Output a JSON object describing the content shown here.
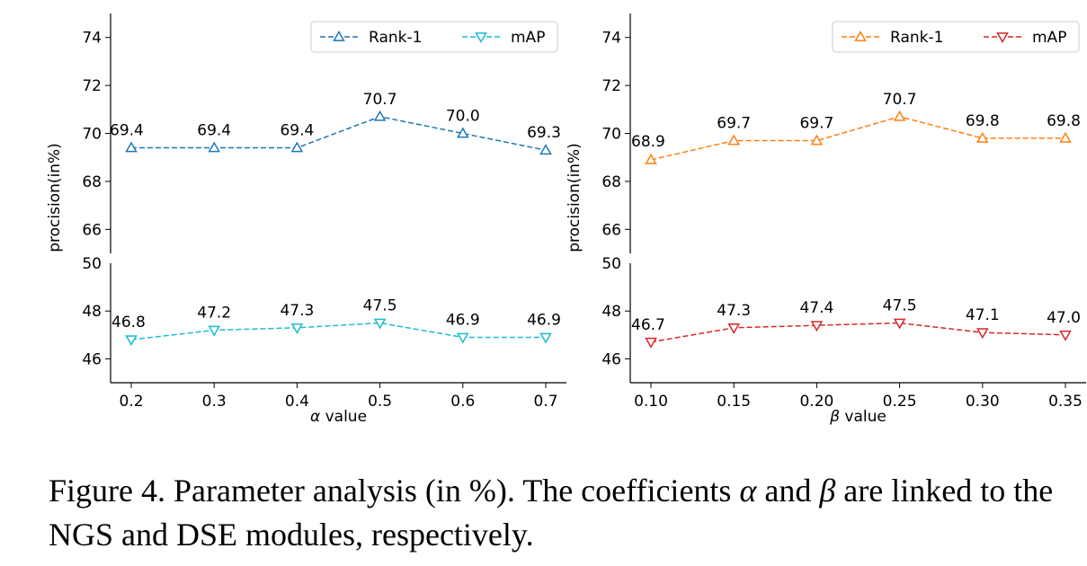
{
  "caption": {
    "prefix": "Figure 4. Parameter analysis (in %). The coefficients ",
    "alpha": "α",
    "middle": " and ",
    "beta": "β",
    "suffix": " are linked to the NGS and DSE modules, respectively."
  },
  "colors": {
    "rank1_left": "#1f77b4",
    "map_left": "#17becf",
    "rank1_right": "#ff7f0e",
    "map_right": "#d62728"
  },
  "chart_data": [
    {
      "type": "line",
      "panel": "left",
      "categories": [
        "0.2",
        "0.3",
        "0.4",
        "0.5",
        "0.6",
        "0.7"
      ],
      "x": [
        0.2,
        0.3,
        0.4,
        0.5,
        0.6,
        0.7
      ],
      "xlabel_symbol": "α",
      "xlabel_text": " value",
      "ylabel": "procision(in%)",
      "axis_break": true,
      "upper_ylim": [
        65,
        75
      ],
      "upper_yticks": [
        "66",
        "68",
        "70",
        "72",
        "74"
      ],
      "lower_ylim": [
        45,
        50
      ],
      "lower_yticks": [
        "46",
        "48",
        "50"
      ],
      "legend_placement": "top-right",
      "grid": false,
      "series": [
        {
          "name": "Rank-1",
          "marker": "triangle-up",
          "axis": "upper",
          "values": [
            69.4,
            69.4,
            69.4,
            70.7,
            70.0,
            69.3
          ],
          "labels": [
            "69.4",
            "69.4",
            "69.4",
            "70.7",
            "70.0",
            "69.3"
          ]
        },
        {
          "name": "mAP",
          "marker": "triangle-down",
          "axis": "lower",
          "values": [
            46.8,
            47.2,
            47.3,
            47.5,
            46.9,
            46.9
          ],
          "labels": [
            "46.8",
            "47.2",
            "47.3",
            "47.5",
            "46.9",
            "46.9"
          ]
        }
      ]
    },
    {
      "type": "line",
      "panel": "right",
      "categories": [
        "0.10",
        "0.15",
        "0.20",
        "0.25",
        "0.30",
        "0.35"
      ],
      "x": [
        0.1,
        0.15,
        0.2,
        0.25,
        0.3,
        0.35
      ],
      "xlabel_symbol": "β",
      "xlabel_text": " value",
      "ylabel": "procision(in%)",
      "axis_break": true,
      "upper_ylim": [
        65,
        75
      ],
      "upper_yticks": [
        "66",
        "68",
        "70",
        "72",
        "74"
      ],
      "lower_ylim": [
        45,
        50
      ],
      "lower_yticks": [
        "46",
        "48",
        "50"
      ],
      "legend_placement": "top-right",
      "grid": false,
      "series": [
        {
          "name": "Rank-1",
          "marker": "triangle-up",
          "axis": "upper",
          "values": [
            68.9,
            69.7,
            69.7,
            70.7,
            69.8,
            69.8
          ],
          "labels": [
            "68.9",
            "69.7",
            "69.7",
            "70.7",
            "69.8",
            "69.8"
          ]
        },
        {
          "name": "mAP",
          "marker": "triangle-down",
          "axis": "lower",
          "values": [
            46.7,
            47.3,
            47.4,
            47.5,
            47.1,
            47.0
          ],
          "labels": [
            "46.7",
            "47.3",
            "47.4",
            "47.5",
            "47.1",
            "47.0"
          ]
        }
      ]
    }
  ]
}
